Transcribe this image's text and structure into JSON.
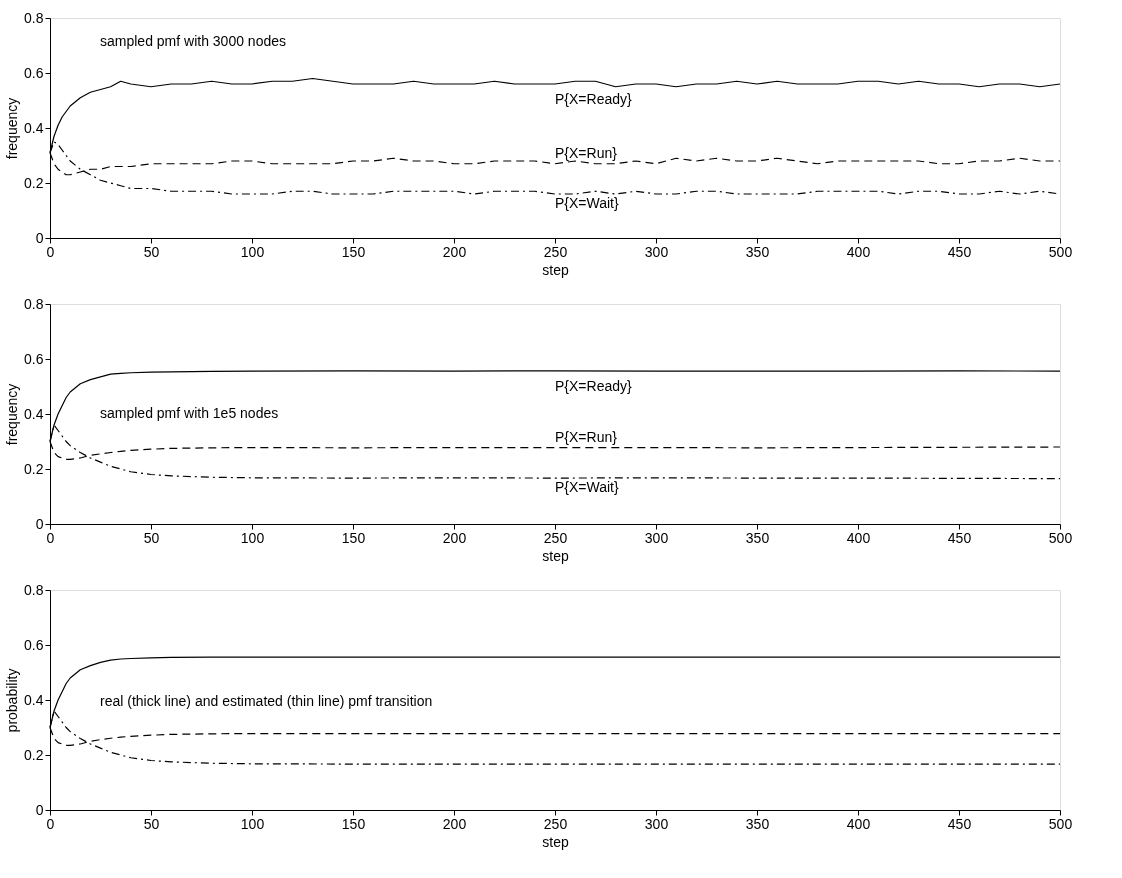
{
  "chart_data": [
    {
      "type": "line",
      "xlabel": "step",
      "ylabel": "frequency",
      "annotations": [
        "sampled pmf with 3000 nodes"
      ],
      "xlim": [
        0,
        500
      ],
      "ylim": [
        0,
        0.8
      ],
      "xticks": [
        0,
        50,
        100,
        150,
        200,
        250,
        300,
        350,
        400,
        450,
        500
      ],
      "yticks": [
        0,
        0.2,
        0.4,
        0.6,
        0.8
      ],
      "grid": false,
      "x": [
        0,
        2,
        4,
        6,
        8,
        10,
        15,
        20,
        25,
        30,
        35,
        40,
        50,
        60,
        70,
        80,
        90,
        100,
        110,
        120,
        130,
        140,
        150,
        160,
        170,
        180,
        190,
        200,
        210,
        220,
        230,
        240,
        250,
        260,
        270,
        280,
        290,
        300,
        310,
        320,
        330,
        340,
        350,
        360,
        370,
        380,
        390,
        400,
        410,
        420,
        430,
        440,
        450,
        460,
        470,
        480,
        490,
        500
      ],
      "series": [
        {
          "name": "P{X=Ready}",
          "color": "#000000",
          "line_style": "solid",
          "values": [
            0.31,
            0.37,
            0.41,
            0.44,
            0.46,
            0.48,
            0.51,
            0.53,
            0.54,
            0.55,
            0.57,
            0.56,
            0.55,
            0.56,
            0.56,
            0.57,
            0.56,
            0.56,
            0.57,
            0.57,
            0.58,
            0.57,
            0.56,
            0.56,
            0.56,
            0.57,
            0.56,
            0.56,
            0.56,
            0.57,
            0.56,
            0.56,
            0.56,
            0.57,
            0.57,
            0.55,
            0.56,
            0.56,
            0.55,
            0.56,
            0.56,
            0.57,
            0.56,
            0.57,
            0.56,
            0.56,
            0.56,
            0.57,
            0.57,
            0.56,
            0.57,
            0.56,
            0.56,
            0.55,
            0.56,
            0.56,
            0.55,
            0.56
          ]
        },
        {
          "name": "P{X=Run}",
          "color": "#000000",
          "line_style": "dashed",
          "values": [
            0.31,
            0.27,
            0.25,
            0.24,
            0.23,
            0.23,
            0.24,
            0.25,
            0.25,
            0.26,
            0.26,
            0.26,
            0.27,
            0.27,
            0.27,
            0.27,
            0.28,
            0.28,
            0.27,
            0.27,
            0.27,
            0.27,
            0.28,
            0.28,
            0.29,
            0.28,
            0.28,
            0.27,
            0.27,
            0.28,
            0.28,
            0.28,
            0.27,
            0.28,
            0.27,
            0.27,
            0.28,
            0.27,
            0.29,
            0.28,
            0.29,
            0.28,
            0.28,
            0.29,
            0.28,
            0.27,
            0.28,
            0.28,
            0.28,
            0.28,
            0.28,
            0.27,
            0.27,
            0.28,
            0.28,
            0.29,
            0.28,
            0.28
          ]
        },
        {
          "name": "P{X=Wait}",
          "color": "#000000",
          "line_style": "dashdot",
          "values": [
            0.31,
            0.35,
            0.34,
            0.32,
            0.3,
            0.28,
            0.25,
            0.23,
            0.21,
            0.2,
            0.19,
            0.18,
            0.18,
            0.17,
            0.17,
            0.17,
            0.16,
            0.16,
            0.16,
            0.17,
            0.17,
            0.16,
            0.16,
            0.16,
            0.17,
            0.17,
            0.17,
            0.17,
            0.16,
            0.17,
            0.17,
            0.17,
            0.16,
            0.16,
            0.17,
            0.16,
            0.17,
            0.16,
            0.16,
            0.17,
            0.17,
            0.16,
            0.16,
            0.16,
            0.16,
            0.17,
            0.17,
            0.17,
            0.17,
            0.16,
            0.17,
            0.17,
            0.16,
            0.16,
            0.17,
            0.16,
            0.17,
            0.16
          ]
        }
      ]
    },
    {
      "type": "line",
      "xlabel": "step",
      "ylabel": "frequency",
      "annotations": [
        "sampled pmf with 1e5 nodes"
      ],
      "xlim": [
        0,
        500
      ],
      "ylim": [
        0,
        0.8
      ],
      "xticks": [
        0,
        50,
        100,
        150,
        200,
        250,
        300,
        350,
        400,
        450,
        500
      ],
      "yticks": [
        0,
        0.2,
        0.4,
        0.6,
        0.8
      ],
      "grid": false,
      "x": [
        0,
        2,
        4,
        6,
        8,
        10,
        15,
        20,
        25,
        30,
        35,
        40,
        50,
        60,
        80,
        100,
        150,
        200,
        250,
        300,
        350,
        400,
        450,
        500
      ],
      "series": [
        {
          "name": "P{X=Ready}",
          "color": "#000000",
          "line_style": "solid",
          "values": [
            0.3,
            0.36,
            0.4,
            0.43,
            0.46,
            0.48,
            0.51,
            0.525,
            0.535,
            0.545,
            0.548,
            0.55,
            0.552,
            0.553,
            0.555,
            0.556,
            0.557,
            0.556,
            0.557,
            0.556,
            0.556,
            0.556,
            0.557,
            0.556
          ]
        },
        {
          "name": "P{X=Run}",
          "color": "#000000",
          "line_style": "dashed",
          "values": [
            0.3,
            0.26,
            0.245,
            0.24,
            0.235,
            0.235,
            0.24,
            0.25,
            0.255,
            0.26,
            0.264,
            0.268,
            0.272,
            0.275,
            0.277,
            0.278,
            0.277,
            0.278,
            0.278,
            0.278,
            0.277,
            0.278,
            0.279,
            0.28
          ]
        },
        {
          "name": "P{X=Wait}",
          "color": "#000000",
          "line_style": "dashdot",
          "values": [
            0.3,
            0.36,
            0.34,
            0.32,
            0.3,
            0.285,
            0.26,
            0.24,
            0.225,
            0.21,
            0.2,
            0.19,
            0.18,
            0.175,
            0.17,
            0.168,
            0.167,
            0.168,
            0.167,
            0.168,
            0.167,
            0.167,
            0.166,
            0.165
          ]
        }
      ]
    },
    {
      "type": "line",
      "xlabel": "step",
      "ylabel": "probability",
      "annotations": [
        "real (thick line) and estimated (thin line) pmf transition"
      ],
      "xlim": [
        0,
        500
      ],
      "ylim": [
        0,
        0.8
      ],
      "xticks": [
        0,
        50,
        100,
        150,
        200,
        250,
        300,
        350,
        400,
        450,
        500
      ],
      "yticks": [
        0,
        0.2,
        0.4,
        0.6,
        0.8
      ],
      "grid": false,
      "x": [
        0,
        2,
        4,
        6,
        8,
        10,
        15,
        20,
        25,
        30,
        35,
        40,
        50,
        60,
        80,
        100,
        150,
        200,
        250,
        300,
        350,
        400,
        450,
        500
      ],
      "series": [
        {
          "color": "#000000",
          "line_style": "solid",
          "values": [
            0.3,
            0.36,
            0.4,
            0.43,
            0.46,
            0.48,
            0.51,
            0.525,
            0.537,
            0.545,
            0.549,
            0.551,
            0.553,
            0.555,
            0.556,
            0.556,
            0.556,
            0.556,
            0.556,
            0.556,
            0.556,
            0.556,
            0.556,
            0.556
          ]
        },
        {
          "color": "#000000",
          "line_style": "dashed",
          "values": [
            0.3,
            0.26,
            0.245,
            0.24,
            0.235,
            0.235,
            0.24,
            0.25,
            0.256,
            0.261,
            0.265,
            0.268,
            0.272,
            0.275,
            0.277,
            0.278,
            0.278,
            0.278,
            0.278,
            0.278,
            0.278,
            0.278,
            0.278,
            0.278
          ]
        },
        {
          "color": "#000000",
          "line_style": "dashdot",
          "values": [
            0.3,
            0.36,
            0.34,
            0.32,
            0.3,
            0.285,
            0.26,
            0.24,
            0.225,
            0.21,
            0.2,
            0.19,
            0.18,
            0.175,
            0.17,
            0.168,
            0.167,
            0.167,
            0.167,
            0.167,
            0.167,
            0.167,
            0.167,
            0.167
          ]
        }
      ]
    }
  ]
}
